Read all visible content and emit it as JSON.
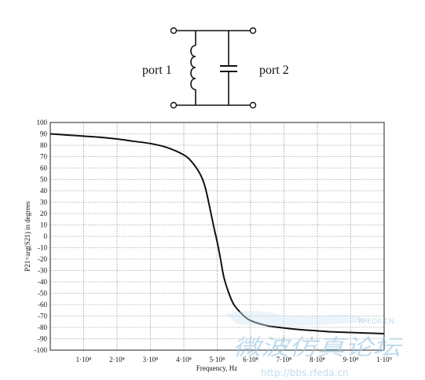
{
  "circuit": {
    "port1_label": "port 1",
    "port2_label": "port 2"
  },
  "watermark": {
    "site": "RFEDA.CN",
    "url": "http://bbs.rfeda.cn",
    "chinese": "微波仿真论坛"
  },
  "chart_data": {
    "type": "line",
    "title": "",
    "xlabel": "Frequency, Hz",
    "ylabel": "P21=arg(S21) in degrees",
    "xlim": [
      0,
      1000000000
    ],
    "ylim": [
      -100,
      100
    ],
    "grid": true,
    "x_tick_labels": [
      "1·10⁸",
      "2·10⁸",
      "3·10⁸",
      "4·10⁸",
      "5·10⁸",
      "6·10⁸",
      "7·10⁸",
      "8·10⁸",
      "9·10⁸",
      "1·10⁹"
    ],
    "x_ticks": [
      100000000,
      200000000,
      300000000,
      400000000,
      500000000,
      600000000,
      700000000,
      800000000,
      900000000,
      1000000000
    ],
    "y_ticks": [
      100,
      90,
      80,
      70,
      60,
      50,
      40,
      30,
      20,
      10,
      0,
      -10,
      -20,
      -30,
      -40,
      -50,
      -60,
      -70,
      -80,
      -90,
      -100
    ],
    "y_tick_labels": [
      "100",
      "90",
      "80",
      "70",
      "60",
      "50",
      "40",
      "30",
      "20",
      "10",
      "0",
      "-10",
      "-20",
      "-30",
      "-40",
      "-50",
      "-60",
      "-70",
      "-80",
      "-90",
      "-100"
    ],
    "series": [
      {
        "x": [
          0,
          50000000,
          100000000,
          150000000,
          200000000,
          250000000,
          300000000,
          350000000,
          400000000,
          425000000,
          450000000,
          465000000,
          480000000,
          490000000,
          500000000,
          510000000,
          520000000,
          535000000,
          550000000,
          575000000,
          600000000,
          650000000,
          700000000,
          750000000,
          800000000,
          850000000,
          900000000,
          950000000,
          1000000000
        ],
        "y": [
          90,
          89,
          88,
          87,
          85.5,
          83.5,
          81.5,
          78,
          71.5,
          65,
          54,
          42,
          22,
          8,
          -5,
          -20,
          -36,
          -50,
          -60,
          -68.5,
          -74,
          -78.5,
          -80.5,
          -82,
          -83,
          -84,
          -84.5,
          -85,
          -85.5
        ]
      }
    ]
  }
}
